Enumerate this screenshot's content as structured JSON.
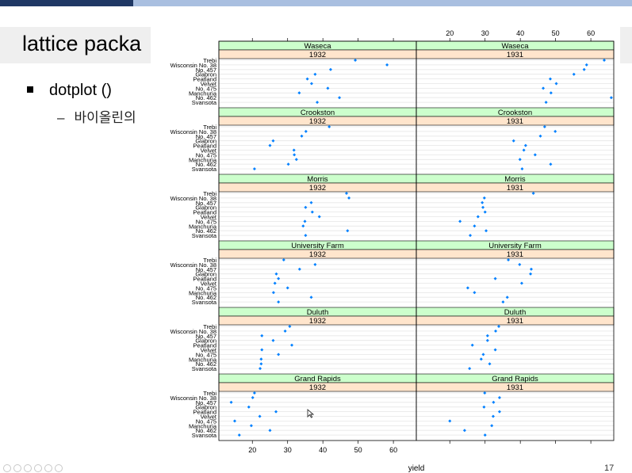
{
  "slide": {
    "title": "lattice packa",
    "bullet": "dotplot ()",
    "sub_bullet": "바이올린의",
    "page_number": "17"
  },
  "colors": {
    "strip_top": "#ccffcc",
    "strip_bottom": "#ffe5cc",
    "point": "#0080ff",
    "grid": "#e6e6e6"
  },
  "chart_data": {
    "type": "scatter",
    "xlabel": "yield",
    "ylabel": "",
    "xlim": [
      10.5,
      66.5
    ],
    "x_ticks": [
      20,
      30,
      40,
      50,
      60
    ],
    "x_tick_labels": [
      "20",
      "30",
      "40",
      "50",
      "60"
    ],
    "years": [
      "1932",
      "1931"
    ],
    "varieties": [
      "Trebi",
      "Wisconsin No. 38",
      "No. 457",
      "Glabron",
      "Peatland",
      "Velvet",
      "No. 475",
      "Manchuria",
      "No. 462",
      "Svansota"
    ],
    "sites": [
      {
        "name": "Waseca",
        "values": {
          "1932": [
            49.2,
            58.2,
            42.2,
            37.8,
            35.6,
            36.8,
            41.4,
            33.3,
            44.7,
            38.4
          ],
          "1931": [
            63.8,
            58.8,
            58.1,
            55.2,
            48.5,
            50.2,
            46.5,
            48.7,
            65.8,
            47.3
          ]
        }
      },
      {
        "name": "Crookston",
        "values": {
          "1932": [
            41.8,
            35.2,
            34.0,
            25.9,
            25.0,
            31.8,
            31.9,
            32.5,
            30.2,
            20.6
          ],
          "1931": [
            46.9,
            49.9,
            45.7,
            38.1,
            41.5,
            41.0,
            44.2,
            39.9,
            48.6,
            40.5
          ]
        }
      },
      {
        "name": "Morris",
        "values": {
          "1932": [
            46.7,
            47.4,
            36.7,
            35.1,
            37.0,
            39.0,
            34.9,
            34.4,
            47.0,
            35.1
          ],
          "1931": [
            43.7,
            29.8,
            29.2,
            29.4,
            30.0,
            28.0,
            22.9,
            27.0,
            30.3,
            25.8
          ]
        }
      },
      {
        "name": "University Farm",
        "values": {
          "1932": [
            28.9,
            37.8,
            33.4,
            26.8,
            27.4,
            26.4,
            30.0,
            26.0,
            36.7,
            27.4
          ],
          "1931": [
            36.6,
            39.8,
            43.1,
            42.9,
            32.9,
            40.4,
            25.1,
            27.0,
            36.3,
            35.1
          ]
        }
      },
      {
        "name": "Duluth",
        "values": {
          "1932": [
            30.6,
            29.3,
            22.7,
            25.9,
            31.2,
            22.7,
            27.4,
            22.5,
            22.5,
            22.2
          ],
          "1931": [
            33.9,
            33.0,
            30.7,
            30.7,
            26.4,
            32.9,
            29.5,
            28.9,
            31.3,
            25.6
          ]
        }
      },
      {
        "name": "Grand Rapids",
        "values": {
          "1932": [
            20.6,
            20.1,
            14.0,
            19.0,
            26.7,
            22.1,
            15.0,
            19.7,
            25.0,
            16.3
          ],
          "1931": [
            29.9,
            34.1,
            32.4,
            29.7,
            34.1,
            32.3,
            20.0,
            31.9,
            24.2,
            30.0
          ]
        }
      }
    ]
  }
}
